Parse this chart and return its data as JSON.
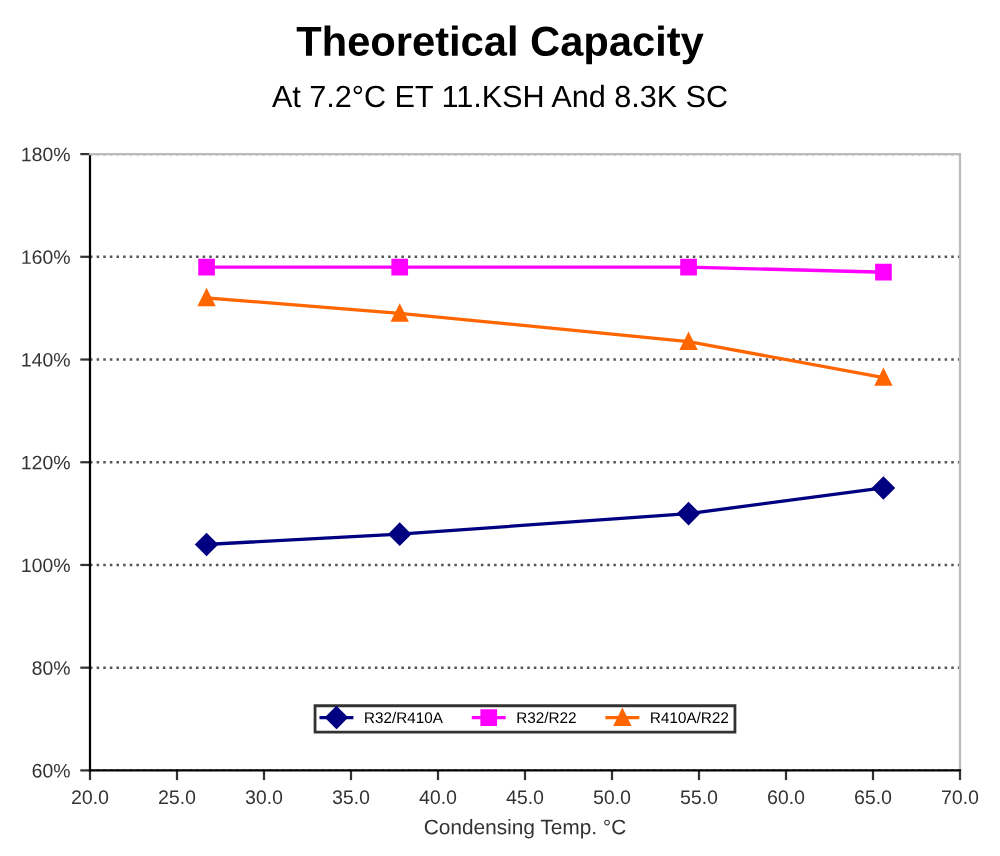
{
  "chart_data": {
    "type": "line",
    "title": "Theoretical Capacity",
    "subtitle": "At 7.2°C ET 11.KSH And 8.3K SC",
    "xlabel": "Condensing Temp. °C",
    "x": [
      26.7,
      37.8,
      54.4,
      65.6
    ],
    "series": [
      {
        "name": "R32/R410A",
        "color": "#000080",
        "marker": "diamond",
        "values": [
          104,
          106,
          110,
          115
        ]
      },
      {
        "name": "R32/R22",
        "color": "#ff00ff",
        "marker": "square",
        "values": [
          158,
          158,
          158,
          157
        ]
      },
      {
        "name": "R410A/R22",
        "color": "#ff6600",
        "marker": "triangle",
        "values": [
          152,
          149,
          143.5,
          136.5
        ]
      }
    ],
    "xlim": [
      20,
      70
    ],
    "xticks": [
      {
        "value": 20,
        "label": "20.0"
      },
      {
        "value": 25,
        "label": "25.0"
      },
      {
        "value": 30,
        "label": "30.0"
      },
      {
        "value": 35,
        "label": "35.0"
      },
      {
        "value": 40,
        "label": "40.0"
      },
      {
        "value": 45,
        "label": "45.0"
      },
      {
        "value": 50,
        "label": "50.0"
      },
      {
        "value": 55,
        "label": "55.0"
      },
      {
        "value": 60,
        "label": "60.0"
      },
      {
        "value": 65,
        "label": "65.0"
      },
      {
        "value": 70,
        "label": "70.0"
      }
    ],
    "ylim": [
      60,
      180
    ],
    "yticks": [
      {
        "value": 60,
        "label": "60%"
      },
      {
        "value": 80,
        "label": "80%"
      },
      {
        "value": 100,
        "label": "100%"
      },
      {
        "value": 120,
        "label": "120%"
      },
      {
        "value": 140,
        "label": "140%"
      },
      {
        "value": 160,
        "label": "160%"
      },
      {
        "value": 180,
        "label": "180%"
      }
    ],
    "grid": "y",
    "legend": "bottom",
    "line_style": "solid"
  }
}
